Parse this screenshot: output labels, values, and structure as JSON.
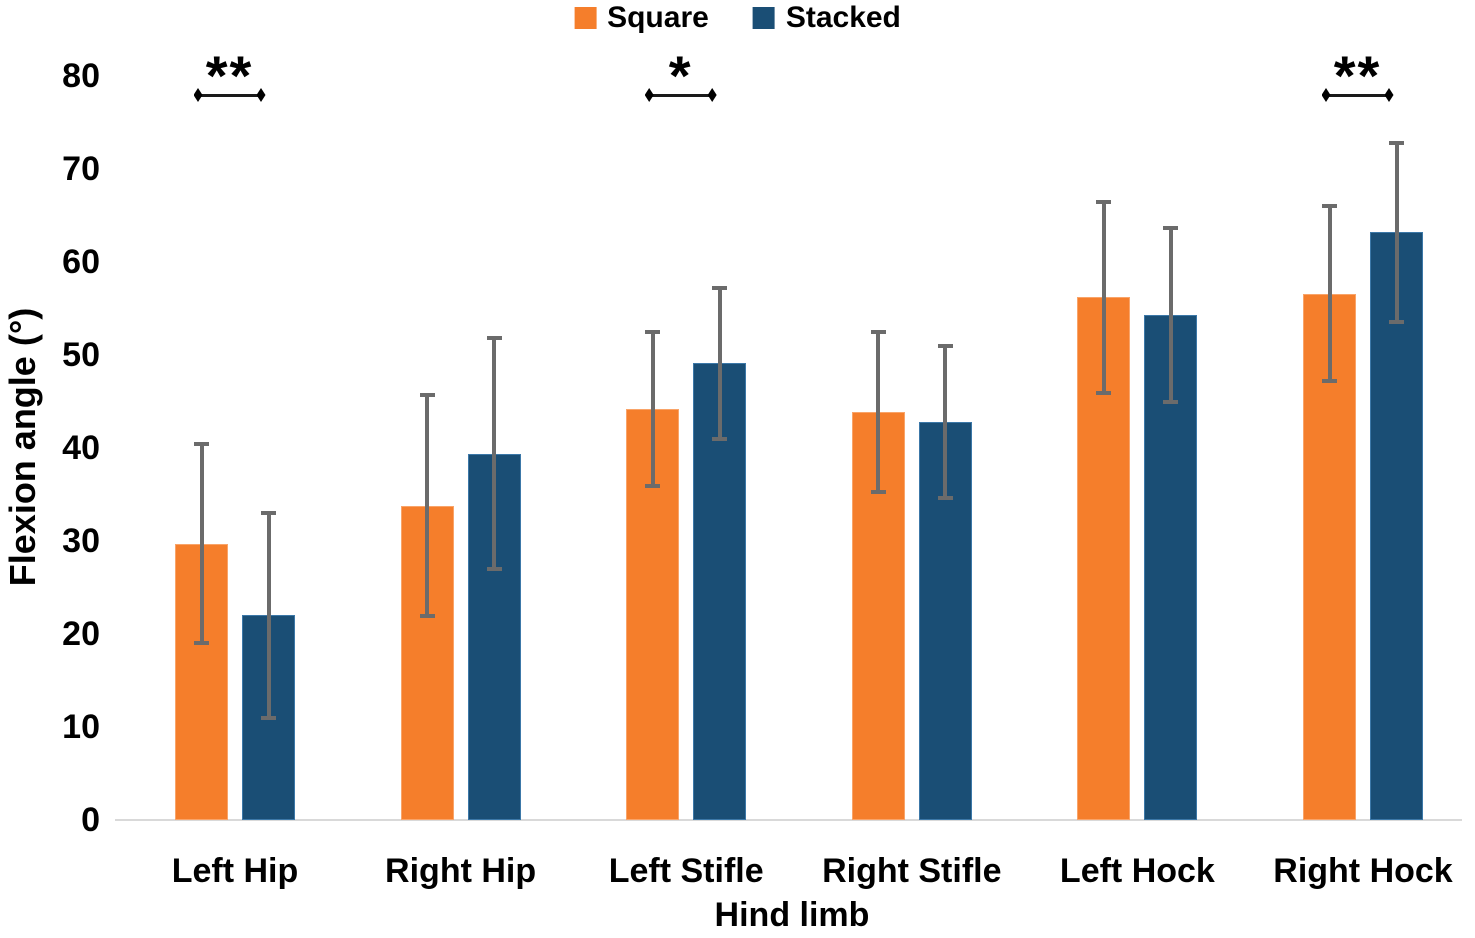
{
  "chart_data": {
    "type": "bar",
    "title": "",
    "xlabel": "Hind limb",
    "ylabel": "Flexion angle (°)",
    "ylim": [
      0,
      80
    ],
    "y_ticks": [
      0,
      10,
      20,
      30,
      40,
      50,
      60,
      70,
      80
    ],
    "grid": false,
    "legend_position": "top-center",
    "categories": [
      "Left Hip",
      "Right Hip",
      "Left Stifle",
      "Right Stifle",
      "Left Hock",
      "Right Hock"
    ],
    "series": [
      {
        "name": "Square",
        "color": "#F57E2B",
        "values": [
          29.7,
          33.8,
          44.2,
          43.9,
          56.2,
          56.6
        ],
        "error_plus": [
          10.7,
          11.9,
          8.3,
          8.6,
          10.3,
          9.4
        ],
        "error_minus": [
          10.7,
          11.9,
          8.3,
          8.6,
          10.3,
          9.4
        ]
      },
      {
        "name": "Stacked",
        "color": "#1A4E75",
        "values": [
          22.0,
          39.4,
          49.1,
          42.8,
          54.3,
          63.2
        ],
        "error_plus": [
          11.0,
          12.4,
          8.1,
          8.2,
          9.4,
          9.6
        ],
        "error_minus": [
          11.0,
          12.4,
          8.1,
          8.2,
          9.4,
          9.6
        ]
      }
    ],
    "error_bar_color": "#6B6B6B",
    "significance_markers": [
      {
        "category": "Left Hip",
        "label": "**"
      },
      {
        "category": "Left Stifle",
        "label": "*"
      },
      {
        "category": "Right Hock",
        "label": "**"
      }
    ]
  }
}
